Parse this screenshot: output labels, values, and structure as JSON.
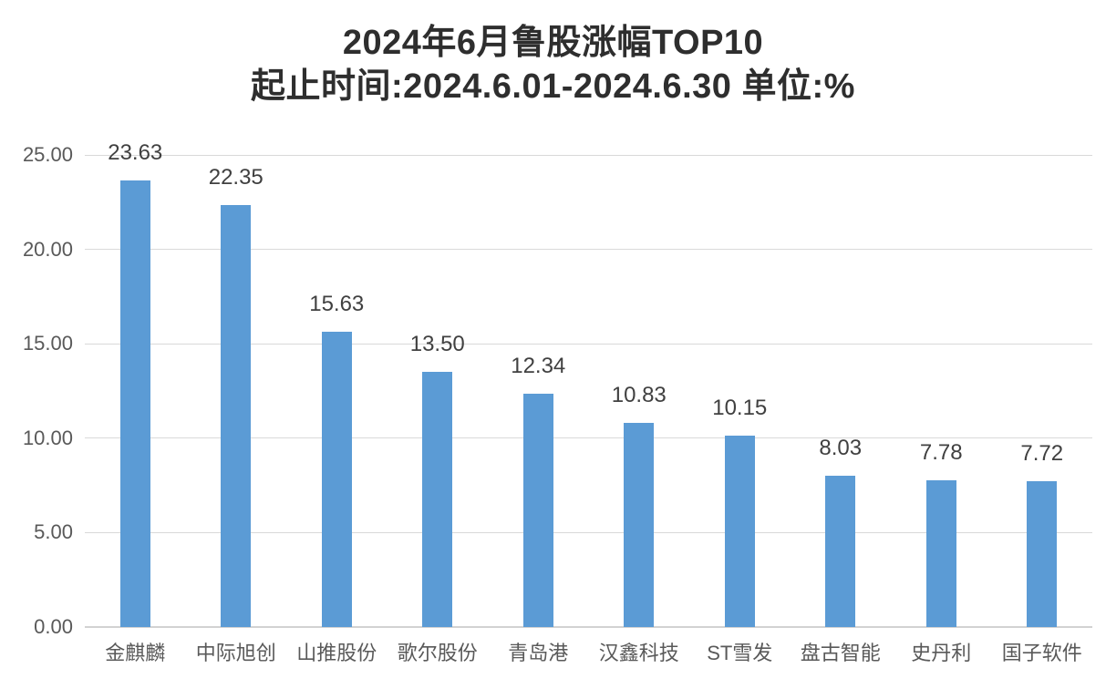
{
  "chart_data": {
    "type": "bar",
    "title": "2024年6月鲁股涨幅TOP10",
    "subtitle": "起止时间:2024.6.01-2024.6.30 单位:%",
    "unit": "%",
    "categories": [
      "金麒麟",
      "中际旭创",
      "山推股份",
      "歌尔股份",
      "青岛港",
      "汉鑫科技",
      "ST雪发",
      "盘古智能",
      "史丹利",
      "国子软件"
    ],
    "values": [
      23.63,
      22.35,
      15.63,
      13.5,
      12.34,
      10.83,
      10.15,
      8.03,
      7.78,
      7.72
    ],
    "value_labels": [
      "23.63",
      "22.35",
      "15.63",
      "13.50",
      "12.34",
      "10.83",
      "10.15",
      "8.03",
      "7.78",
      "7.72"
    ],
    "ylim": [
      0,
      25
    ],
    "yticks": [
      0,
      5,
      10,
      15,
      20,
      25
    ],
    "ytick_labels": [
      "0.00",
      "5.00",
      "10.00",
      "15.00",
      "20.00",
      "25.00"
    ],
    "grid": true,
    "legend": false,
    "colors": {
      "bar": "#5B9BD5",
      "gridline": "#D9D9D9",
      "axis_line": "#D2D2D2",
      "axis_text": "#595959",
      "data_label": "#404040",
      "title_text": "#2E2E2E",
      "background": "#FFFFFF"
    }
  }
}
